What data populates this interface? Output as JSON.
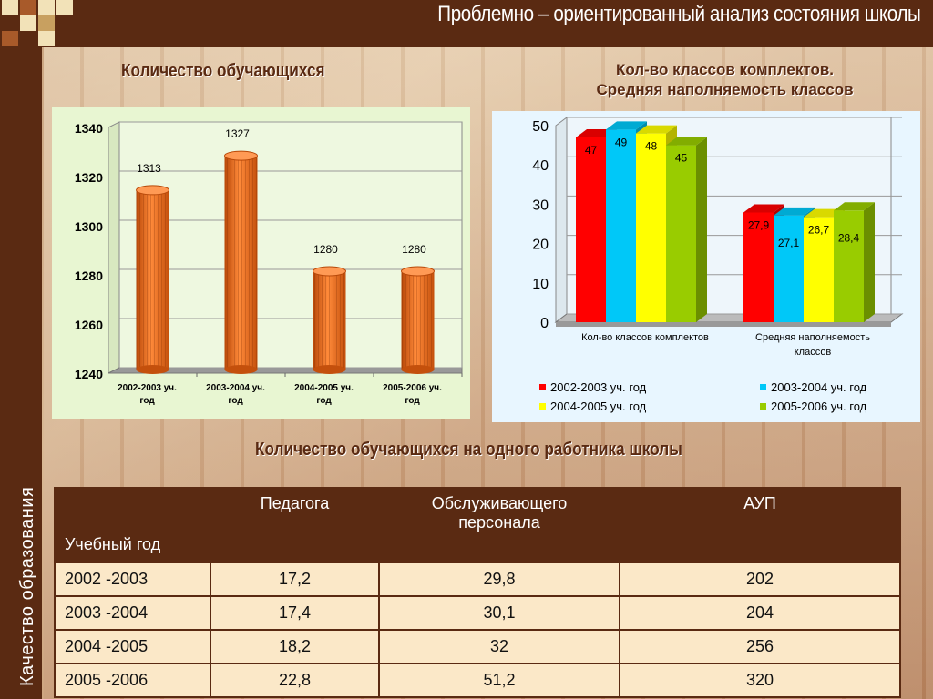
{
  "header": {
    "title": "Проблемно – ориентированный анализ состояния школы"
  },
  "sidebar": {
    "label": "Качество образования"
  },
  "headings": {
    "students": "Количество обучающихся",
    "classes_line1": "Кол-во классов комплектов.",
    "classes_line2": "Средняя наполняемость классов",
    "per_worker": "Количество обучающихся на одного работника школы"
  },
  "colors": {
    "brown": "#5a2a12",
    "orange": "#e8681a",
    "red": "#ff0000",
    "cyan": "#00c8f8",
    "yellow": "#ffff00",
    "green": "#99cc00"
  },
  "chart_data": [
    {
      "type": "bar",
      "categories": [
        "2002-2003 уч. год",
        "2003-2004 уч. год",
        "2004-2005 уч. год",
        "2005-2006 уч. год"
      ],
      "values": [
        1313,
        1327,
        1280,
        1280
      ],
      "data_labels": [
        "1313",
        "1327",
        "1280",
        "1280"
      ],
      "ylim": [
        1240,
        1340
      ],
      "yticks": [
        "1240",
        "1260",
        "1280",
        "1300",
        "1320",
        "1340"
      ],
      "grid": true
    },
    {
      "type": "bar",
      "categories": [
        "Кол-во классов комплектов",
        "Средняя наполняемость классов"
      ],
      "series": [
        {
          "name": "2002-2003 уч. год",
          "values": [
            47,
            27.9
          ],
          "labels": [
            "47",
            "27,9"
          ]
        },
        {
          "name": "2003-2004 уч. год",
          "values": [
            49,
            27.1
          ],
          "labels": [
            "49",
            "27,1"
          ]
        },
        {
          "name": "2004-2005 уч. год",
          "values": [
            48,
            26.7
          ],
          "labels": [
            "48",
            "26,7"
          ]
        },
        {
          "name": "2005-2006 уч. год",
          "values": [
            45,
            28.4
          ],
          "labels": [
            "45",
            "28,4"
          ]
        }
      ],
      "ylim": [
        0,
        50
      ],
      "yticks": [
        "0",
        "10",
        "20",
        "30",
        "40",
        "50"
      ],
      "legend": "bottom",
      "grid": true
    }
  ],
  "table": {
    "headers": [
      "Учебный год",
      "Педагога",
      "Обслуживающего персонала",
      "АУП"
    ],
    "rows": [
      [
        "2002 -2003",
        "17,2",
        "29,8",
        "202"
      ],
      [
        "2003 -2004",
        "17,4",
        "30,1",
        "204"
      ],
      [
        "2004 -2005",
        "18,2",
        "32",
        "256"
      ],
      [
        "2005 -2006",
        "22,8",
        "51,2",
        "320"
      ]
    ]
  }
}
